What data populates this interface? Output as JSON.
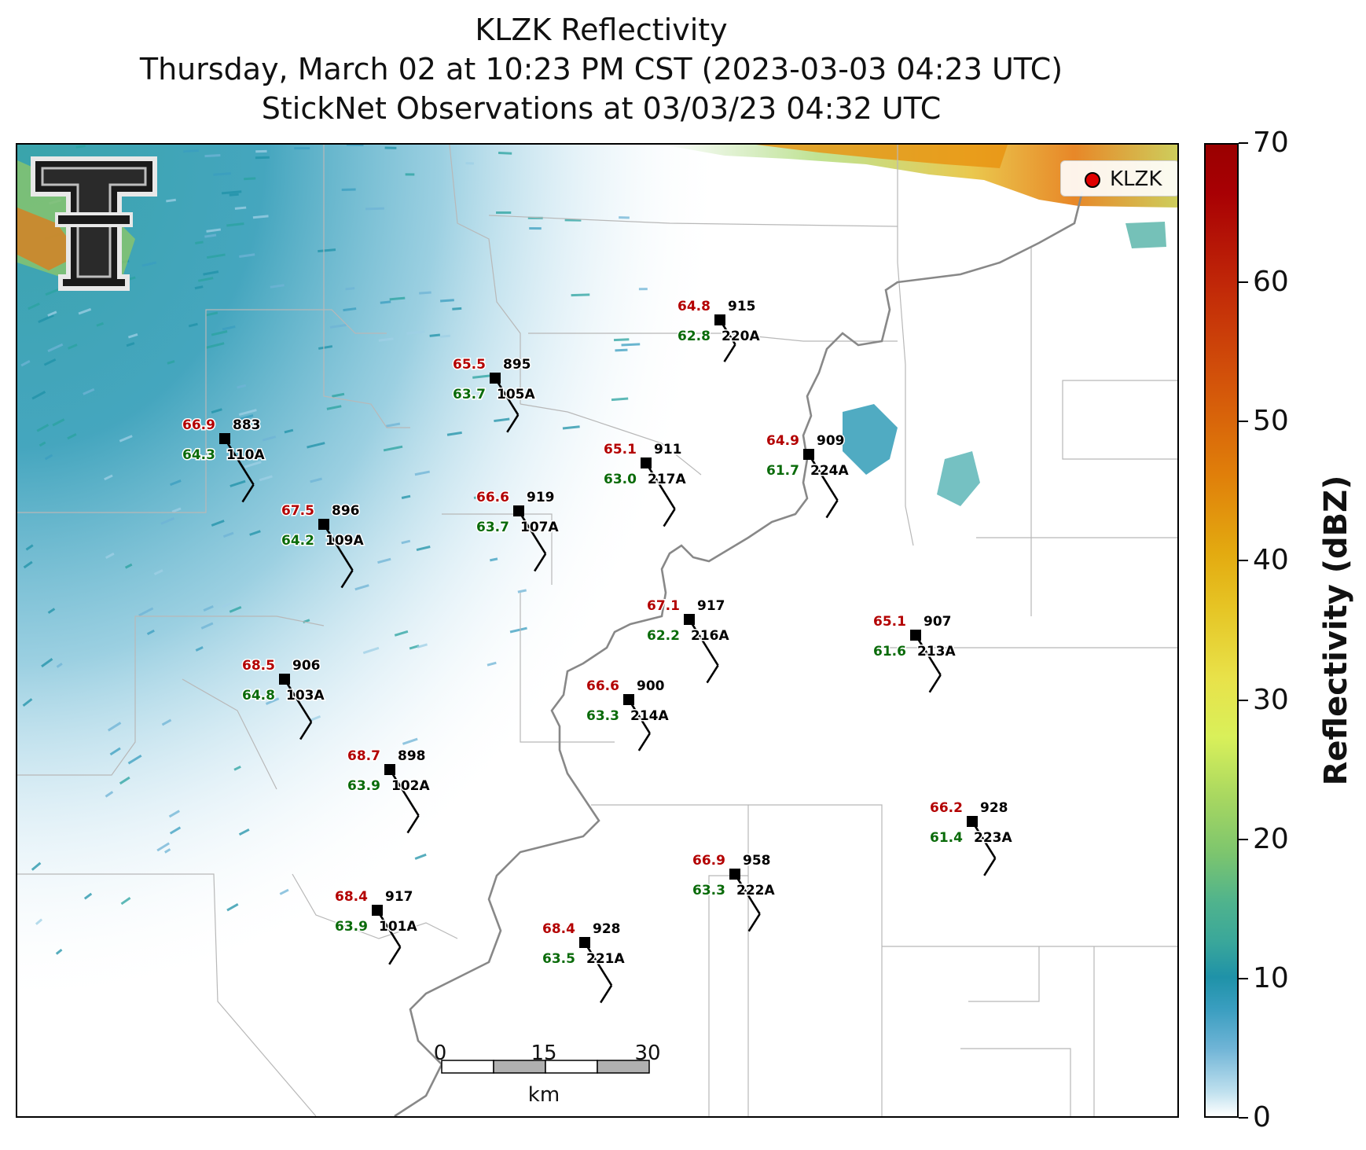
{
  "title": {
    "line1": "KLZK Reflectivity",
    "line2": "Thursday, March 02 at 10:23 PM CST (2023-03-03 04:23 UTC)",
    "line3": "StickNet Observations at 03/03/23 04:32 UTC"
  },
  "legend": {
    "label": "KLZK",
    "marker_color": "#e00000"
  },
  "logo": {
    "name": "texas-tech-double-t-logo"
  },
  "colorbar": {
    "label": "Reflectivity (dBZ)",
    "ticks": [
      "0",
      "10",
      "20",
      "30",
      "40",
      "50",
      "60",
      "70"
    ],
    "range": [
      0,
      70
    ]
  },
  "scalebar": {
    "ticks": [
      "0",
      "15",
      "30"
    ],
    "unit": "km"
  },
  "colors": {
    "temperature": "#b30000",
    "dewpoint": "#0a6b0a",
    "station": "#000000",
    "state_line": "#888888",
    "county_line": "#b8b8b8"
  },
  "stations": [
    {
      "id": "220A",
      "pressure": "915",
      "temp": "64.8",
      "dewpoint": "62.8"
    },
    {
      "id": "105A",
      "pressure": "895",
      "temp": "65.5",
      "dewpoint": "63.7"
    },
    {
      "id": "110A",
      "pressure": "883",
      "temp": "66.9",
      "dewpoint": "64.3"
    },
    {
      "id": "217A",
      "pressure": "911",
      "temp": "65.1",
      "dewpoint": "63.0"
    },
    {
      "id": "224A",
      "pressure": "909",
      "temp": "64.9",
      "dewpoint": "61.7"
    },
    {
      "id": "109A",
      "pressure": "896",
      "temp": "67.5",
      "dewpoint": "64.2"
    },
    {
      "id": "107A",
      "pressure": "919",
      "temp": "66.6",
      "dewpoint": "63.7"
    },
    {
      "id": "216A",
      "pressure": "917",
      "temp": "67.1",
      "dewpoint": "62.2"
    },
    {
      "id": "213A",
      "pressure": "907",
      "temp": "65.1",
      "dewpoint": "61.6"
    },
    {
      "id": "103A",
      "pressure": "906",
      "temp": "68.5",
      "dewpoint": "64.8"
    },
    {
      "id": "214A",
      "pressure": "900",
      "temp": "66.6",
      "dewpoint": "63.3"
    },
    {
      "id": "102A",
      "pressure": "898",
      "temp": "68.7",
      "dewpoint": "63.9"
    },
    {
      "id": "223A",
      "pressure": "928",
      "temp": "66.2",
      "dewpoint": "61.4"
    },
    {
      "id": "222A",
      "pressure": "958",
      "temp": "66.9",
      "dewpoint": "63.3"
    },
    {
      "id": "101A",
      "pressure": "917",
      "temp": "68.4",
      "dewpoint": "63.9"
    },
    {
      "id": "221A",
      "pressure": "928",
      "temp": "68.4",
      "dewpoint": "63.5"
    }
  ]
}
